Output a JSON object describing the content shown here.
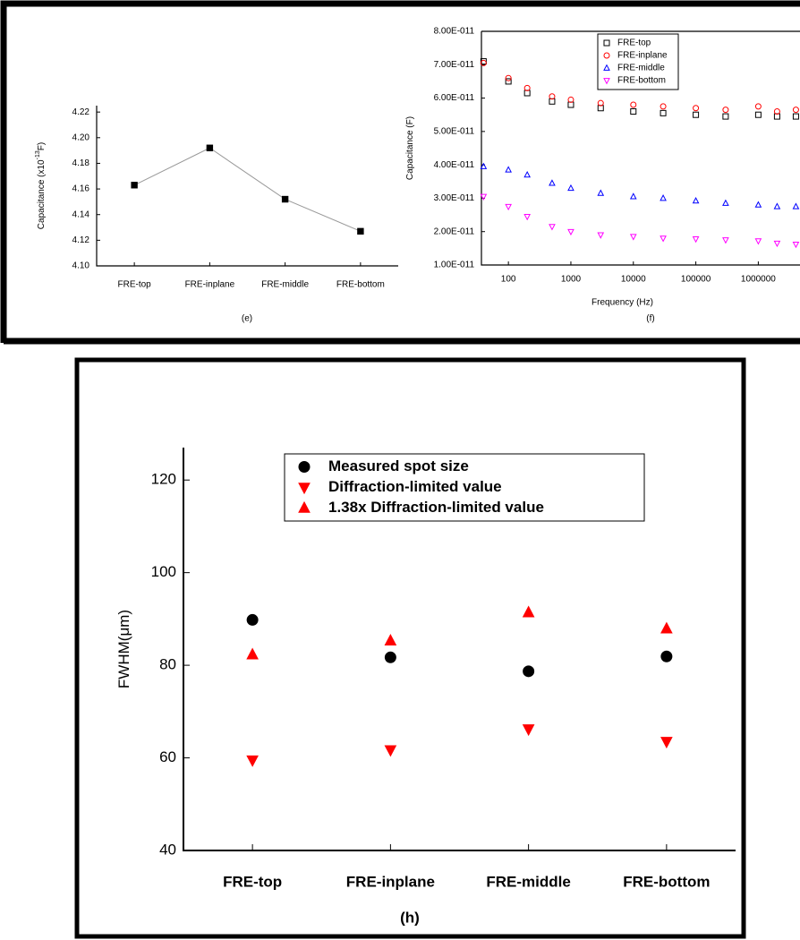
{
  "chart_data": [
    {
      "type": "line",
      "title": "(e)",
      "ylabel": "Capacitance (x10",
      "ylabel_sup": "-13",
      "ylabel_end": "F)",
      "categories": [
        "FRE-top",
        "FRE-inplane",
        "FRE-middle",
        "FRE-bottom"
      ],
      "values": [
        4.163,
        4.192,
        4.152,
        4.127
      ],
      "color": "#000000",
      "line_color": "#999999",
      "marker": "square",
      "filled": true,
      "ylim": [
        4.1,
        4.225
      ],
      "yticks": [
        {
          "value": 4.1,
          "label": "4.10"
        },
        {
          "value": 4.12,
          "label": "4.12"
        },
        {
          "value": 4.14,
          "label": "4.14"
        },
        {
          "value": 4.16,
          "label": "4.16"
        },
        {
          "value": 4.18,
          "label": "4.18"
        },
        {
          "value": 4.2,
          "label": "4.20"
        },
        {
          "value": 4.22,
          "label": "4.22"
        }
      ]
    },
    {
      "type": "scatter",
      "title": "(f)",
      "xlabel": "Frequency (Hz)",
      "ylabel": "Capacitance (F)",
      "x": [
        40,
        100,
        200,
        500,
        1000,
        3000,
        10000,
        30000,
        100000,
        300000,
        1000000,
        2000000,
        4000000
      ],
      "series": [
        {
          "name": "FRE-top",
          "color": "#000000",
          "marker": "square",
          "values": [
            7.1e-11,
            6.5e-11,
            6.15e-11,
            5.9e-11,
            5.8e-11,
            5.7e-11,
            5.6e-11,
            5.55e-11,
            5.5e-11,
            5.45e-11,
            5.5e-11,
            5.45e-11,
            5.45e-11
          ]
        },
        {
          "name": "FRE-inplane",
          "color": "#ff0000",
          "marker": "circle",
          "values": [
            7.05e-11,
            6.6e-11,
            6.3e-11,
            6.05e-11,
            5.95e-11,
            5.85e-11,
            5.8e-11,
            5.75e-11,
            5.7e-11,
            5.65e-11,
            5.75e-11,
            5.6e-11,
            5.65e-11
          ]
        },
        {
          "name": "FRE-middle",
          "color": "#0000ff",
          "marker": "triangle-up",
          "values": [
            3.95e-11,
            3.85e-11,
            3.7e-11,
            3.45e-11,
            3.3e-11,
            3.15e-11,
            3.05e-11,
            3e-11,
            2.92e-11,
            2.85e-11,
            2.8e-11,
            2.75e-11,
            2.75e-11
          ]
        },
        {
          "name": "FRE-bottom",
          "color": "#ff00ff",
          "marker": "triangle-down",
          "values": [
            3.05e-11,
            2.75e-11,
            2.45e-11,
            2.15e-11,
            2e-11,
            1.9e-11,
            1.85e-11,
            1.8e-11,
            1.78e-11,
            1.75e-11,
            1.72e-11,
            1.65e-11,
            1.62e-11
          ]
        }
      ],
      "filled": false,
      "xlog": true,
      "xlim": [
        37,
        4500000
      ],
      "ylim": [
        1e-11,
        8e-11
      ],
      "xticks": [
        100,
        1000,
        10000,
        100000,
        1000000
      ],
      "yticks": [
        {
          "value": 1e-11,
          "label": "1.00E-011"
        },
        {
          "value": 2e-11,
          "label": "2.00E-011"
        },
        {
          "value": 3e-11,
          "label": "3.00E-011"
        },
        {
          "value": 4e-11,
          "label": "4.00E-011"
        },
        {
          "value": 5e-11,
          "label": "5.00E-011"
        },
        {
          "value": 6e-11,
          "label": "6.00E-011"
        },
        {
          "value": 7e-11,
          "label": "7.00E-011"
        },
        {
          "value": 8e-11,
          "label": "8.00E-011"
        }
      ],
      "legend": "top-center"
    },
    {
      "type": "scatter",
      "title": "(h)",
      "ylabel": "FWHM(μm)",
      "categories": [
        "FRE-top",
        "FRE-inplane",
        "FRE-middle",
        "FRE-bottom"
      ],
      "series": [
        {
          "name": "Measured spot size",
          "color": "#000000",
          "marker": "circle",
          "values": [
            89.8,
            81.7,
            78.7,
            81.9
          ]
        },
        {
          "name": "Diffraction-limited value",
          "color": "#ff0000",
          "marker": "triangle-down",
          "values": [
            59.5,
            61.7,
            66.2,
            63.5
          ]
        },
        {
          "name": "1.38x Diffraction-limited value",
          "color": "#ff0000",
          "marker": "triangle-up",
          "values": [
            82.3,
            85.3,
            91.4,
            87.9
          ]
        }
      ],
      "filled": true,
      "ylim": [
        40,
        127
      ],
      "yticks": [
        40,
        60,
        80,
        100,
        120
      ],
      "legend": "top-center"
    }
  ]
}
